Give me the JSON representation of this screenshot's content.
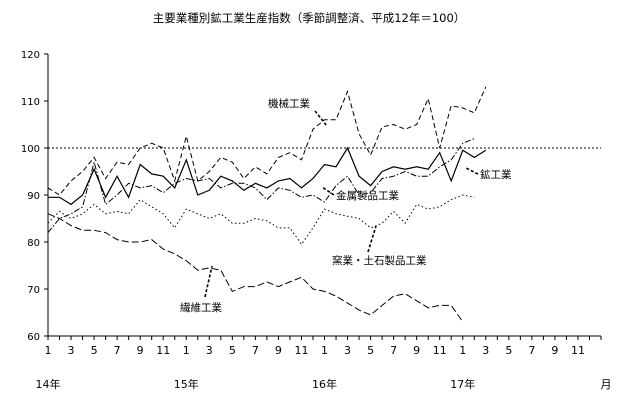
{
  "chart_data": {
    "type": "line",
    "title": "主要業種別鉱工業生産指数（季節調整済、平成12年＝100）",
    "xlabel": "",
    "ylabel": "",
    "unit_label": "月",
    "ylim": [
      60,
      120
    ],
    "yticks": [
      60,
      70,
      80,
      90,
      100,
      110,
      120
    ],
    "reference_line": 100,
    "grid": false,
    "legend": "inline-labels",
    "x_months": [
      1,
      2,
      3,
      4,
      5,
      6,
      7,
      8,
      9,
      10,
      11,
      12,
      1,
      2,
      3,
      4,
      5,
      6,
      7,
      8,
      9,
      10,
      11,
      12,
      1,
      2,
      3,
      4,
      5,
      6,
      7,
      8,
      9,
      10,
      11,
      12,
      1,
      2,
      3,
      4,
      5,
      6,
      7,
      8,
      9,
      10,
      11,
      12
    ],
    "x_tick_labels": [
      "1",
      "3",
      "5",
      "7",
      "9",
      "11",
      "1",
      "3",
      "5",
      "7",
      "9",
      "11",
      "1",
      "3",
      "5",
      "7",
      "9",
      "11",
      "1",
      "3",
      "5",
      "7",
      "9",
      "11"
    ],
    "year_labels": [
      {
        "label": "14年",
        "index": 0
      },
      {
        "label": "15年",
        "index": 12
      },
      {
        "label": "16年",
        "index": 24
      },
      {
        "label": "17年",
        "index": 36
      }
    ],
    "series": [
      {
        "name": "鉱工業",
        "style": "solid",
        "values": [
          89.5,
          89.5,
          88,
          90,
          95.5,
          89.5,
          94,
          89.5,
          96.5,
          94.5,
          94,
          91.5,
          97.5,
          90,
          91,
          94,
          93,
          91,
          92.5,
          91.5,
          93,
          93.5,
          91.5,
          93.5,
          96.5,
          96,
          100,
          94,
          92,
          95,
          96,
          95.5,
          96,
          95.5,
          99,
          93,
          99.5,
          98,
          99.5
        ]
      },
      {
        "name": "機械工業",
        "style": "dash",
        "values": [
          91.5,
          90,
          93,
          95,
          98,
          93.5,
          97,
          96.5,
          100,
          101,
          100,
          93,
          102.5,
          93,
          95,
          98,
          97,
          93.5,
          96,
          94.5,
          98,
          99,
          97.5,
          104,
          106,
          106,
          112,
          103,
          98.5,
          104.5,
          105,
          104,
          105,
          110.5,
          100,
          109,
          108.5,
          107.5,
          113
        ]
      },
      {
        "name": "金属製品工業",
        "style": "dot",
        "values": [
          84,
          86.5,
          85,
          86,
          88,
          86,
          86.5,
          86,
          89,
          87.5,
          86,
          83,
          87,
          86,
          85,
          86,
          84,
          84,
          85,
          84.5,
          83,
          83,
          79.5,
          83,
          87,
          86,
          85.5,
          85,
          83,
          84,
          86.5,
          84,
          88,
          87,
          87.5,
          89,
          90,
          89.5
        ]
      },
      {
        "name": "窯業・土石製品工業",
        "style": "dashdot",
        "values": [
          82,
          85,
          86,
          87.5,
          97,
          88,
          90,
          92.5,
          91.5,
          92,
          90.5,
          92.5,
          93.5,
          93,
          93.5,
          91.5,
          92.5,
          92.5,
          91.5,
          89,
          91.5,
          91,
          89.5,
          90,
          88.5,
          92,
          94,
          90,
          90.5,
          93.5,
          94,
          95,
          94,
          94,
          96,
          97.5,
          101,
          102
        ]
      },
      {
        "name": "繊維工業",
        "style": "longdash",
        "values": [
          86,
          85,
          83.5,
          82.5,
          82.5,
          82,
          80.5,
          80,
          80,
          80.5,
          78.5,
          77.5,
          76,
          74,
          74.5,
          74,
          69.5,
          70.5,
          70.5,
          71.5,
          70.5,
          71.5,
          72.5,
          70,
          69.5,
          68.5,
          67,
          65.5,
          64.5,
          66.5,
          68.5,
          69,
          67.5,
          66,
          66.5,
          66.5,
          63
        ]
      }
    ],
    "annotations": [
      {
        "text": "機械工業",
        "series": "機械工業"
      },
      {
        "text": "鉱工業",
        "series": "鉱工業"
      },
      {
        "text": "金属製品工業",
        "series": "金属製品工業"
      },
      {
        "text": "窯業・土石製品工業",
        "series": "窯業・土石製品工業"
      },
      {
        "text": "繊維工業",
        "series": "繊維工業"
      }
    ]
  }
}
